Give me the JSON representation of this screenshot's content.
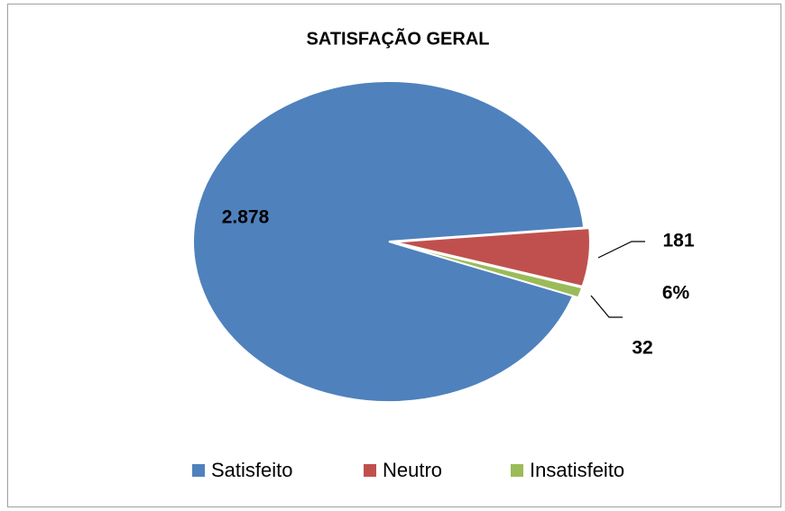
{
  "chart_data": {
    "type": "pie",
    "title": "SATISFAÇÃO GERAL",
    "categories": [
      "Satisfeito",
      "Neutro",
      "Insatisfeito"
    ],
    "values": [
      2878,
      181,
      32
    ],
    "value_labels": [
      "2.878",
      "181",
      "32"
    ],
    "colors": [
      "#4f81bd",
      "#c0504d",
      "#9bbb59"
    ],
    "annotation": "6%",
    "legend": "bottom"
  }
}
